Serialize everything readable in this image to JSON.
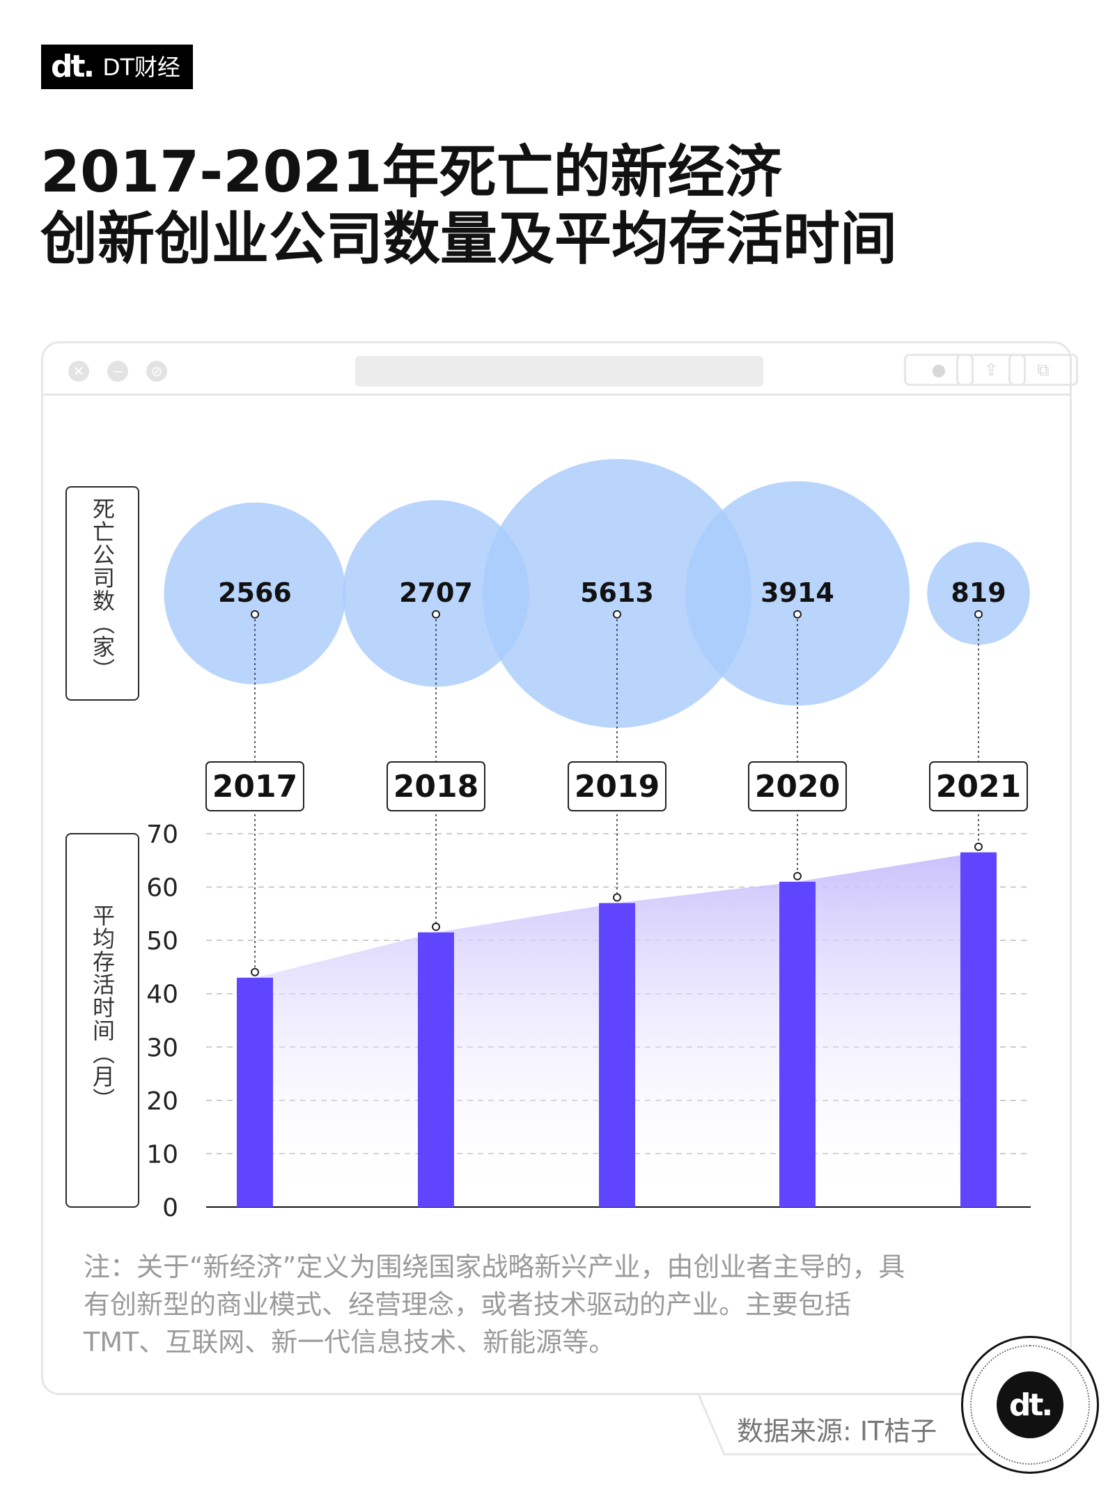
{
  "header": {
    "logo_mark": "dt.",
    "brand_name": "DT财经",
    "title_line1": "2017-2021年死亡的新经济",
    "title_line2": "创新创业公司数量及平均存活时间"
  },
  "window_controls": {
    "close_glyph": "✕",
    "minimize_glyph": "−",
    "block_glyph": "⊘"
  },
  "chart_data": {
    "type": "bar",
    "categories": [
      "2017",
      "2018",
      "2019",
      "2020",
      "2021"
    ],
    "bubble_series": {
      "values": [
        2566,
        2707,
        5613,
        3914,
        819
      ],
      "axis_label": "死亡公司数（家）"
    },
    "bar_series": {
      "values": [
        43,
        51.5,
        57,
        61,
        66.5
      ],
      "axis_label": "平均存活时间（月）"
    },
    "ylim": [
      0,
      70
    ],
    "yticks": [
      0,
      10,
      20,
      30,
      40,
      50,
      60,
      70
    ],
    "grid": true,
    "colors": {
      "bubble": "#a9ccfb",
      "bar": "#6045ff",
      "area_top": "#c8bdfb",
      "label_box_border": "#222222"
    }
  },
  "footer": {
    "note": "注：关于“新经济”定义为围绕国家战略新兴产业，由创业者主导的，具有创新型的商业模式、经营理念，或者技术驱动的产业。主要包括TMT、互联网、新一代信息技术、新能源等。",
    "source": "数据来源: IT桔子",
    "badge_mark": "dt."
  }
}
